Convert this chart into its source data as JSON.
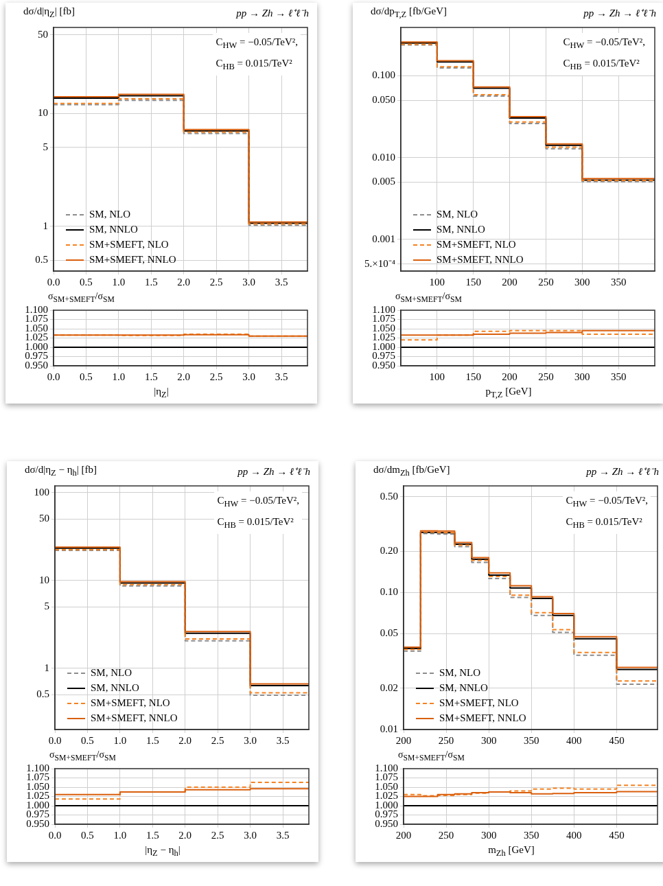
{
  "chart_data": [
    {
      "type": "step",
      "title": "pp → Zh → ℓ⁺ℓ⁻h",
      "ylabel": "dσ/d|η$_{Z}$| [fb]",
      "annotations": [
        "C$_{HW}$ = −0.05/TeV²,",
        "C$_{HB}$ = 0.015/TeV²"
      ],
      "x": [
        0,
        1,
        2,
        3,
        3.9
      ],
      "xlim": [
        0,
        3.9
      ],
      "xticks": [
        {
          "value": 0,
          "label": "0.0"
        },
        {
          "value": 0.5,
          "label": "0.5"
        },
        {
          "value": 1,
          "label": "1.0"
        },
        {
          "value": 1.5,
          "label": "1.5"
        },
        {
          "value": 2,
          "label": "2.0"
        },
        {
          "value": 2.5,
          "label": "2.5"
        },
        {
          "value": 3,
          "label": "3.0"
        },
        {
          "value": 3.5,
          "label": "3.5"
        }
      ],
      "ylim": [
        0.4,
        58
      ],
      "yticks": [
        0.5,
        1,
        5,
        10,
        50
      ],
      "log": true,
      "grid": true,
      "legend": "bottom left",
      "series": [
        {
          "name": "SM, NLO",
          "color": "#8c8c8c",
          "line_style": "dashed",
          "values": [
            12.0,
            13.1,
            6.66,
            1.02,
            1.02
          ]
        },
        {
          "name": "SM, NNLO",
          "color": "#000000",
          "line_style": "solid",
          "values": [
            13.7,
            14.4,
            7.02,
            1.065,
            1.065
          ]
        },
        {
          "name": "SM+SMEFT, NLO",
          "color": "#f58220",
          "line_style": "dashed",
          "values": [
            12.3,
            13.5,
            6.85,
            1.05,
            1.05
          ]
        },
        {
          "name": "SM+SMEFT, NNLO",
          "color": "#d95f0e",
          "line_style": "solid",
          "values": [
            14.1,
            14.8,
            7.2,
            1.09,
            1.09
          ]
        }
      ]
    },
    {
      "type": "step",
      "ylabel": "σ$_{SM+SMEFT}$/σ$_{SM}$",
      "xlabel": "|η$_{Z}$|",
      "x": [
        0,
        1,
        2,
        3,
        3.9
      ],
      "xlim": [
        0,
        3.9
      ],
      "xticks": [
        {
          "value": 0,
          "label": "0.0"
        },
        {
          "value": 0.5,
          "label": "0.5"
        },
        {
          "value": 1,
          "label": "1.0"
        },
        {
          "value": 1.5,
          "label": "1.5"
        },
        {
          "value": 2,
          "label": "2.0"
        },
        {
          "value": 2.5,
          "label": "2.5"
        },
        {
          "value": 3,
          "label": "3.0"
        },
        {
          "value": 3.5,
          "label": "3.5"
        }
      ],
      "ylim": [
        0.95,
        1.1
      ],
      "yticks": [
        {
          "value": 0.95,
          "label": "0.950"
        },
        {
          "value": 0.975,
          "label": "0.975"
        },
        {
          "value": 1,
          "label": "1.000"
        },
        {
          "value": 1.025,
          "label": "1.025"
        },
        {
          "value": 1.05,
          "label": "1.050"
        },
        {
          "value": 1.075,
          "label": "1.075"
        },
        {
          "value": 1.1,
          "label": "1.100"
        }
      ],
      "grid": true,
      "ref_lines": [
        {
          "axis": "y",
          "value": 1,
          "color": "#000000"
        }
      ],
      "series": [
        {
          "color": "#f58220",
          "line_style": "dashed",
          "values": [
            1.033,
            1.032,
            1.035,
            1.03,
            1.03
          ]
        },
        {
          "color": "#d95f0e",
          "line_style": "solid",
          "values": [
            1.033,
            1.033,
            1.034,
            1.03,
            1.03
          ]
        }
      ]
    },
    {
      "type": "step",
      "title": "pp → Zh → ℓ⁺ℓ⁻h",
      "ylabel": "dσ/dp$_{T,Z}$ [fb/GeV]",
      "annotations": [
        "C$_{HW}$ = −0.05/TeV²,",
        "C$_{HB}$ = 0.015/TeV²"
      ],
      "x": [
        50,
        100,
        150,
        200,
        250,
        300,
        400
      ],
      "xlim": [
        50,
        400
      ],
      "xticks": [
        100,
        150,
        200,
        250,
        300,
        350
      ],
      "ylim": [
        0.00041,
        0.39
      ],
      "yticks": [
        {
          "value": 0.0005,
          "label": "5.×10⁻⁴"
        },
        0.001,
        0.005,
        {
          "value": 0.01,
          "label": "0.010"
        },
        {
          "value": 0.05,
          "label": "0.050"
        },
        {
          "value": 0.1,
          "label": "0.100"
        }
      ],
      "log": true,
      "grid": true,
      "legend": "bottom left",
      "series": [
        {
          "name": "SM, NLO",
          "color": "#8c8c8c",
          "line_style": "dashed",
          "values": [
            0.238,
            0.125,
            0.0564,
            0.0261,
            0.0128,
            0.00508,
            0.00508
          ]
        },
        {
          "name": "SM, NNLO",
          "color": "#000000",
          "line_style": "solid",
          "values": [
            0.251,
            0.148,
            0.0706,
            0.0304,
            0.0141,
            0.00531,
            0.00531
          ]
        },
        {
          "name": "SM+SMEFT, NLO",
          "color": "#f58220",
          "line_style": "dashed",
          "values": [
            0.243,
            0.129,
            0.0588,
            0.0273,
            0.0134,
            0.00526,
            0.00526
          ]
        },
        {
          "name": "SM+SMEFT, NNLO",
          "color": "#d95f0e",
          "line_style": "solid",
          "values": [
            0.259,
            0.153,
            0.0731,
            0.0316,
            0.0147,
            0.00555,
            0.00555
          ]
        }
      ]
    },
    {
      "type": "step",
      "ylabel": "σ$_{SM+SMEFT}$/σ$_{SM}$",
      "xlabel": "p$_{T,Z}$ [GeV]",
      "x": [
        50,
        100,
        150,
        200,
        250,
        300,
        400
      ],
      "xlim": [
        50,
        400
      ],
      "xticks": [
        100,
        150,
        200,
        250,
        300,
        350
      ],
      "ylim": [
        0.95,
        1.1
      ],
      "yticks": [
        {
          "value": 0.95,
          "label": "0.950"
        },
        {
          "value": 0.975,
          "label": "0.975"
        },
        {
          "value": 1,
          "label": "1.000"
        },
        {
          "value": 1.025,
          "label": "1.025"
        },
        {
          "value": 1.05,
          "label": "1.050"
        },
        {
          "value": 1.075,
          "label": "1.075"
        },
        {
          "value": 1.1,
          "label": "1.100"
        }
      ],
      "grid": true,
      "ref_lines": [
        {
          "axis": "y",
          "value": 1,
          "color": "#000000"
        }
      ],
      "series": [
        {
          "color": "#f58220",
          "line_style": "dashed",
          "values": [
            1.02,
            1.033,
            1.043,
            1.045,
            1.045,
            1.035,
            1.035
          ]
        },
        {
          "color": "#d95f0e",
          "line_style": "solid",
          "values": [
            1.033,
            1.033,
            1.035,
            1.038,
            1.04,
            1.045,
            1.045
          ]
        }
      ]
    },
    {
      "type": "step",
      "title": "pp → Zh → ℓ⁺ℓ⁻h",
      "ylabel": "dσ/d|η$_{Z}$ − η$_{h}$| [fb]",
      "annotations": [
        "C$_{HW}$ = −0.05/TeV²,",
        "C$_{HB}$ = 0.015/TeV²"
      ],
      "x": [
        0,
        1,
        2,
        3,
        3.9
      ],
      "xlim": [
        0,
        3.9
      ],
      "xticks": [
        {
          "value": 0,
          "label": "0.0"
        },
        {
          "value": 0.5,
          "label": "0.5"
        },
        {
          "value": 1,
          "label": "1.0"
        },
        {
          "value": 1.5,
          "label": "1.5"
        },
        {
          "value": 2,
          "label": "2.0"
        },
        {
          "value": 2.5,
          "label": "2.5"
        },
        {
          "value": 3,
          "label": "3.0"
        },
        {
          "value": 3.5,
          "label": "3.5"
        }
      ],
      "ylim": [
        0.2,
        119
      ],
      "yticks": [
        0.5,
        1,
        5,
        10,
        50,
        100
      ],
      "log": true,
      "grid": true,
      "legend": "bottom left",
      "series": [
        {
          "name": "SM, NLO",
          "color": "#8c8c8c",
          "line_style": "dashed",
          "values": [
            21.9,
            8.62,
            2.05,
            0.492,
            0.492
          ]
        },
        {
          "name": "SM, NNLO",
          "color": "#000000",
          "line_style": "solid",
          "values": [
            23.2,
            9.34,
            2.5,
            0.634,
            0.634
          ]
        },
        {
          "name": "SM+SMEFT, NLO",
          "color": "#f58220",
          "line_style": "dashed",
          "values": [
            22.3,
            8.94,
            2.15,
            0.523,
            0.523
          ]
        },
        {
          "name": "SM+SMEFT, NNLO",
          "color": "#d95f0e",
          "line_style": "solid",
          "values": [
            23.9,
            9.68,
            2.61,
            0.663,
            0.663
          ]
        }
      ]
    },
    {
      "type": "step",
      "ylabel": "σ$_{SM+SMEFT}$/σ$_{SM}$",
      "xlabel": "|η$_{Z}$ − η$_{h}$|",
      "x": [
        0,
        1,
        2,
        3,
        3.9
      ],
      "xlim": [
        0,
        3.9
      ],
      "xticks": [
        {
          "value": 0,
          "label": "0.0"
        },
        {
          "value": 0.5,
          "label": "0.5"
        },
        {
          "value": 1,
          "label": "1.0"
        },
        {
          "value": 1.5,
          "label": "1.5"
        },
        {
          "value": 2,
          "label": "2.0"
        },
        {
          "value": 2.5,
          "label": "2.5"
        },
        {
          "value": 3,
          "label": "3.0"
        },
        {
          "value": 3.5,
          "label": "3.5"
        }
      ],
      "ylim": [
        0.95,
        1.1
      ],
      "yticks": [
        {
          "value": 0.95,
          "label": "0.950"
        },
        {
          "value": 0.975,
          "label": "0.975"
        },
        {
          "value": 1,
          "label": "1.000"
        },
        {
          "value": 1.025,
          "label": "1.025"
        },
        {
          "value": 1.05,
          "label": "1.050"
        },
        {
          "value": 1.075,
          "label": "1.075"
        },
        {
          "value": 1.1,
          "label": "1.100"
        }
      ],
      "grid": true,
      "ref_lines": [
        {
          "axis": "y",
          "value": 1,
          "color": "#000000"
        }
      ],
      "series": [
        {
          "color": "#f58220",
          "line_style": "dashed",
          "values": [
            1.018,
            1.037,
            1.05,
            1.063,
            1.063
          ]
        },
        {
          "color": "#d95f0e",
          "line_style": "solid",
          "values": [
            1.03,
            1.037,
            1.043,
            1.046,
            1.046
          ]
        }
      ]
    },
    {
      "type": "step",
      "title": "pp → Zh → ℓ⁺ℓ⁻h",
      "ylabel": "dσ/dm$_{Zh}$ [fb/GeV]",
      "annotations": [
        "C$_{HW}$ = −0.05/TeV²,",
        "C$_{HB}$ = 0.015/TeV²"
      ],
      "x": [
        200,
        220,
        240,
        260,
        280,
        300,
        325,
        350,
        375,
        400,
        450,
        498
      ],
      "xlim": [
        200,
        498
      ],
      "xticks": [
        200,
        250,
        300,
        350,
        400,
        450
      ],
      "ylim": [
        0.01,
        0.6
      ],
      "yticks": [
        0.01,
        0.02,
        0.05,
        {
          "value": 0.1,
          "label": "0.10"
        },
        {
          "value": 0.2,
          "label": "0.20"
        },
        {
          "value": 0.5,
          "label": "0.50"
        }
      ],
      "log": true,
      "grid": true,
      "legend": "bottom left",
      "series": [
        {
          "name": "SM, NLO",
          "color": "#8c8c8c",
          "line_style": "dashed",
          "values": [
            0.0373,
            0.269,
            0.267,
            0.216,
            0.166,
            0.1265,
            0.092,
            0.0681,
            0.0512,
            0.0349,
            0.0214,
            0.0214
          ]
        },
        {
          "name": "SM, NNLO",
          "color": "#000000",
          "line_style": "solid",
          "values": [
            0.039,
            0.275,
            0.273,
            0.225,
            0.1745,
            0.134,
            0.108,
            0.0905,
            0.0681,
            0.046,
            0.0274,
            0.0274
          ]
        },
        {
          "name": "SM+SMEFT, NLO",
          "color": "#f58220",
          "line_style": "dashed",
          "values": [
            0.0384,
            0.276,
            0.274,
            0.222,
            0.1715,
            0.131,
            0.0957,
            0.0712,
            0.0536,
            0.0365,
            0.0226,
            0.0226
          ]
        },
        {
          "name": "SM+SMEFT, NNLO",
          "color": "#d95f0e",
          "line_style": "solid",
          "values": [
            0.0399,
            0.282,
            0.281,
            0.232,
            0.18,
            0.139,
            0.112,
            0.0932,
            0.0702,
            0.0476,
            0.0284,
            0.0284
          ]
        }
      ]
    },
    {
      "type": "step",
      "ylabel": "σ$_{SM+SMEFT}$/σ$_{SM}$",
      "xlabel": "m$_{Zh}$ [GeV]",
      "x": [
        200,
        220,
        240,
        260,
        280,
        300,
        325,
        350,
        375,
        400,
        450,
        498
      ],
      "xlim": [
        200,
        498
      ],
      "xticks": [
        200,
        250,
        300,
        350,
        400,
        450
      ],
      "ylim": [
        0.95,
        1.1
      ],
      "yticks": [
        {
          "value": 0.95,
          "label": "0.950"
        },
        {
          "value": 0.975,
          "label": "0.975"
        },
        {
          "value": 1,
          "label": "1.000"
        },
        {
          "value": 1.025,
          "label": "1.025"
        },
        {
          "value": 1.05,
          "label": "1.050"
        },
        {
          "value": 1.075,
          "label": "1.075"
        },
        {
          "value": 1.1,
          "label": "1.100"
        }
      ],
      "grid": true,
      "ref_lines": [
        {
          "axis": "y",
          "value": 1,
          "color": "#000000"
        }
      ],
      "series": [
        {
          "color": "#f58220",
          "line_style": "dashed",
          "values": [
            1.03,
            1.027,
            1.028,
            1.03,
            1.034,
            1.037,
            1.04,
            1.045,
            1.047,
            1.045,
            1.055,
            1.055
          ]
        },
        {
          "color": "#d95f0e",
          "line_style": "solid",
          "values": [
            1.025,
            1.025,
            1.03,
            1.032,
            1.035,
            1.037,
            1.035,
            1.032,
            1.033,
            1.035,
            1.038,
            1.038
          ]
        }
      ]
    }
  ]
}
